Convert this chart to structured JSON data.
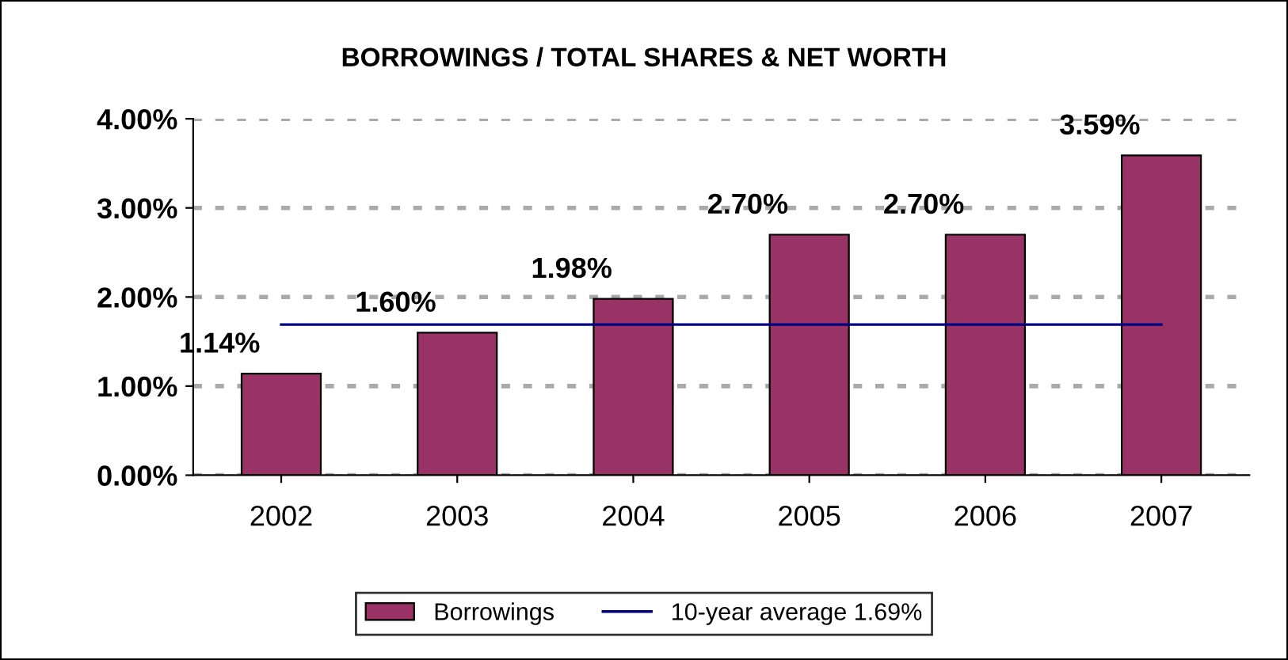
{
  "chart_data": {
    "type": "bar",
    "title": "BORROWINGS / TOTAL SHARES & NET WORTH",
    "categories": [
      "2002",
      "2003",
      "2004",
      "2005",
      "2006",
      "2007"
    ],
    "series": [
      {
        "name": "Borrowings",
        "color": "#993366",
        "values": [
          1.14,
          1.6,
          1.98,
          2.7,
          2.7,
          3.59
        ],
        "value_labels": [
          "1.14%",
          "1.60%",
          "1.98%",
          "2.70%",
          "2.70%",
          "3.59%"
        ]
      },
      {
        "name": "10-year average 1.69%",
        "type": "line",
        "color": "#000080",
        "values": [
          1.69,
          1.69,
          1.69,
          1.69,
          1.69,
          1.69
        ]
      }
    ],
    "ylim": [
      0,
      4
    ],
    "yticks": [
      {
        "value": 0,
        "label": "0.00%"
      },
      {
        "value": 1,
        "label": "1.00%"
      },
      {
        "value": 2,
        "label": "2.00%"
      },
      {
        "value": 3,
        "label": "3.00%"
      },
      {
        "value": 4,
        "label": "4.00%"
      }
    ],
    "grid": "y",
    "legend": "bottom"
  }
}
